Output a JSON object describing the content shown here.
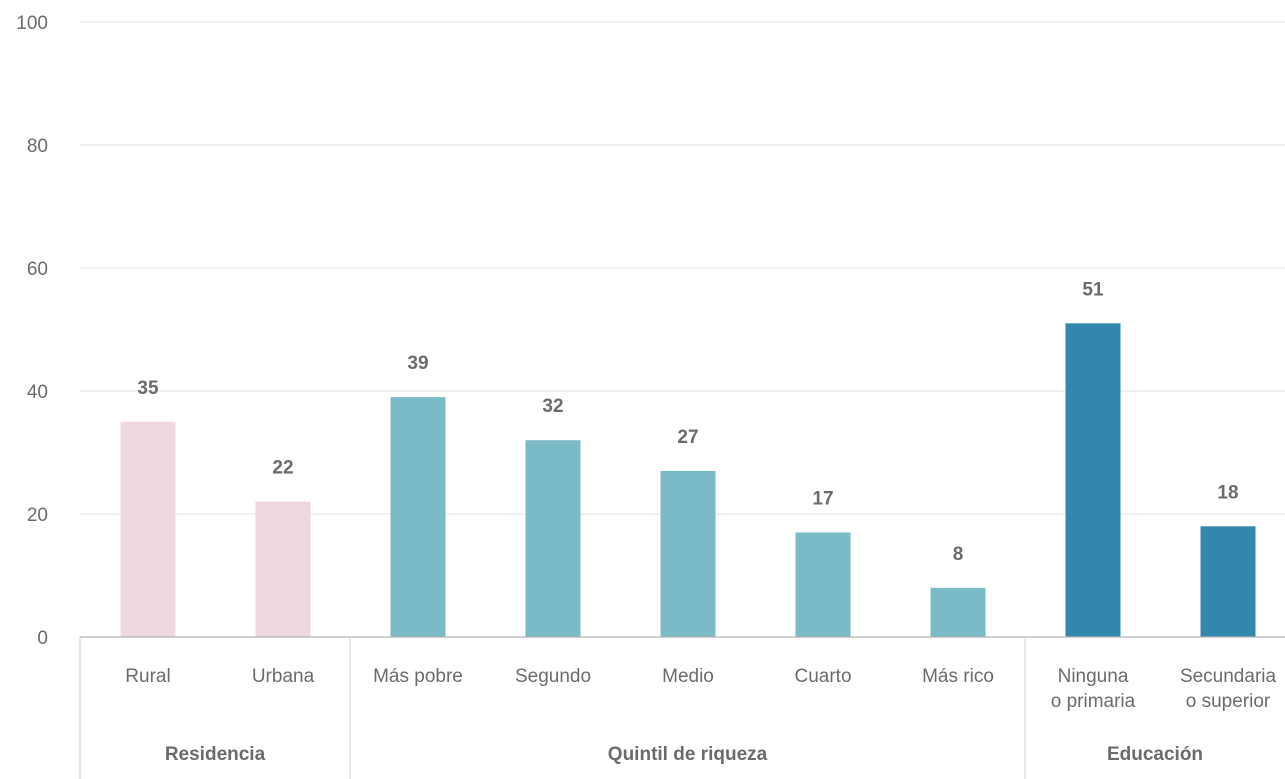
{
  "chart_data": {
    "type": "bar",
    "title": "",
    "xlabel": "",
    "ylabel": "",
    "ylim": [
      0,
      100
    ],
    "yticks": [
      0,
      20,
      40,
      60,
      80,
      100
    ],
    "grid": true,
    "categories": [
      {
        "lines": [
          "Rural"
        ],
        "value": 35,
        "group": "Residencia"
      },
      {
        "lines": [
          "Urbana"
        ],
        "value": 22,
        "group": "Residencia"
      },
      {
        "lines": [
          "Más pobre"
        ],
        "value": 39,
        "group": "Quintil de riqueza"
      },
      {
        "lines": [
          "Segundo"
        ],
        "value": 32,
        "group": "Quintil de riqueza"
      },
      {
        "lines": [
          "Medio"
        ],
        "value": 27,
        "group": "Quintil de riqueza"
      },
      {
        "lines": [
          "Cuarto"
        ],
        "value": 17,
        "group": "Quintil de riqueza"
      },
      {
        "lines": [
          "Más rico"
        ],
        "value": 8,
        "group": "Quintil de riqueza"
      },
      {
        "lines": [
          "Ninguna",
          "o primaria"
        ],
        "value": 51,
        "group": "Educación"
      },
      {
        "lines": [
          "Secundaria",
          "o superior"
        ],
        "value": 18,
        "group": "Educación"
      }
    ],
    "groups": [
      {
        "name": "Residencia",
        "color": "#efd6df"
      },
      {
        "name": "Quintil de riqueza",
        "color": "#7bbbc8"
      },
      {
        "name": "Educación",
        "color": "#3287ad"
      }
    ]
  }
}
